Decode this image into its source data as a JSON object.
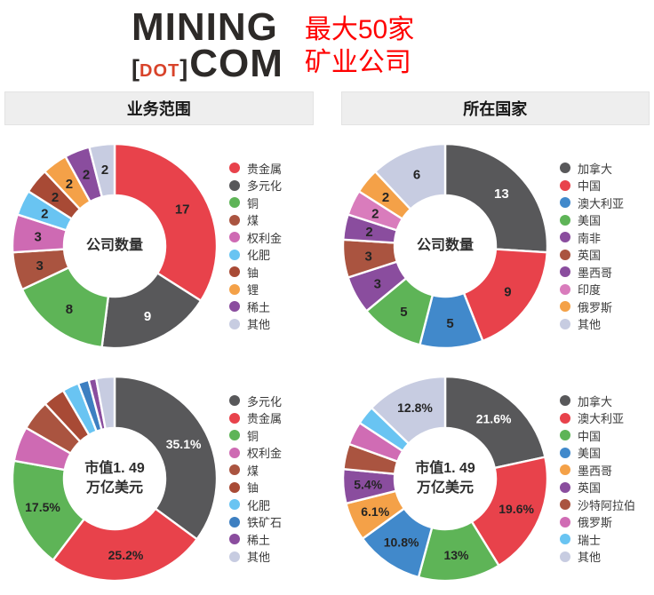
{
  "header": {
    "logo": {
      "mining": "MINING",
      "bracket_open": "[",
      "dot": "DOT",
      "bracket_close": "]",
      "com": "COM"
    },
    "title": "最大50家\n矿业公司"
  },
  "section_headers": {
    "left": "业务范围",
    "right": "所在国家"
  },
  "colors": {
    "dark_slice": "#58585a",
    "white_label": "#ffffff",
    "dark_label": "#242424",
    "logo_dot": "#d8432a",
    "logo_text": "#2d2a28",
    "title_red": "#ff0000",
    "bar_bg": "#eeeeee"
  },
  "chart_data": [
    {
      "type": "pie",
      "variant": "donut",
      "section": "业务范围",
      "center_label": "公司数量",
      "legend_position": "right",
      "categories": [
        "贵金属",
        "多元化",
        "铜",
        "煤",
        "权利金",
        "化肥",
        "铀",
        "锂",
        "稀土",
        "其他"
      ],
      "values": [
        17,
        9,
        8,
        3,
        3,
        2,
        2,
        2,
        2,
        2
      ],
      "value_labels": [
        "17",
        "9",
        "8",
        "3",
        "3",
        "2",
        "2",
        "2",
        "2",
        "2"
      ],
      "colors": [
        "#e8424b",
        "#58585a",
        "#5eb457",
        "#aa5440",
        "#ce6ab3",
        "#69c4f2",
        "#a84a35",
        "#f4a148",
        "#8a4d9e",
        "#c7cce1"
      ],
      "label_size": 15
    },
    {
      "type": "pie",
      "variant": "donut",
      "section": "所在国家",
      "center_label": "公司数量",
      "legend_position": "right",
      "categories": [
        "加拿大",
        "中国",
        "澳大利亚",
        "美国",
        "南非",
        "英国",
        "墨西哥",
        "印度",
        "俄罗斯",
        "其他"
      ],
      "values": [
        13,
        9,
        5,
        5,
        3,
        3,
        2,
        2,
        2,
        6
      ],
      "value_labels": [
        "13",
        "9",
        "5",
        "5",
        "3",
        "3",
        "2",
        "2",
        "2",
        "6"
      ],
      "colors": [
        "#58585a",
        "#e8424b",
        "#4189cb",
        "#5eb457",
        "#8a4d9e",
        "#aa5440",
        "#8a4d9e",
        "#d97cbc",
        "#f4a148",
        "#c7cce1"
      ],
      "label_size": 15
    },
    {
      "type": "pie",
      "variant": "donut",
      "section": "业务范围",
      "center_label": "市值1. 49\n万亿美元",
      "legend_position": "right",
      "categories": [
        "多元化",
        "贵金属",
        "铜",
        "权利金",
        "煤",
        "铀",
        "化肥",
        "铁矿石",
        "稀土",
        "其他"
      ],
      "values": [
        35.1,
        25.2,
        17.5,
        5.5,
        4.8,
        3.5,
        2.6,
        1.7,
        1.2,
        2.9
      ],
      "value_labels": [
        "35.1%",
        "25.2%",
        "17.5%",
        "",
        "",
        "",
        "",
        "",
        "",
        ""
      ],
      "colors": [
        "#58585a",
        "#e8424b",
        "#5eb457",
        "#ce6ab3",
        "#aa5440",
        "#a84a35",
        "#69c4f2",
        "#3d7fc1",
        "#8a4d9e",
        "#c7cce1"
      ],
      "label_size": 14
    },
    {
      "type": "pie",
      "variant": "donut",
      "section": "所在国家",
      "center_label": "市值1. 49\n万亿美元",
      "legend_position": "right",
      "categories": [
        "加拿大",
        "澳大利亚",
        "中国",
        "美国",
        "墨西哥",
        "英国",
        "沙特阿拉伯",
        "俄罗斯",
        "瑞士",
        "其他"
      ],
      "values": [
        21.6,
        19.6,
        13,
        10.8,
        6.1,
        5.4,
        4.0,
        3.7,
        3.0,
        12.8
      ],
      "value_labels": [
        "21.6%",
        "19.6%",
        "13%",
        "10.8%",
        "6.1%",
        "5.4%",
        "",
        "",
        "",
        "12.8%"
      ],
      "colors": [
        "#58585a",
        "#e8424b",
        "#5eb457",
        "#4189cb",
        "#f4a148",
        "#8a4d9e",
        "#aa5440",
        "#d06cb4",
        "#69c4f2",
        "#c7cce1"
      ],
      "label_size": 14
    }
  ]
}
